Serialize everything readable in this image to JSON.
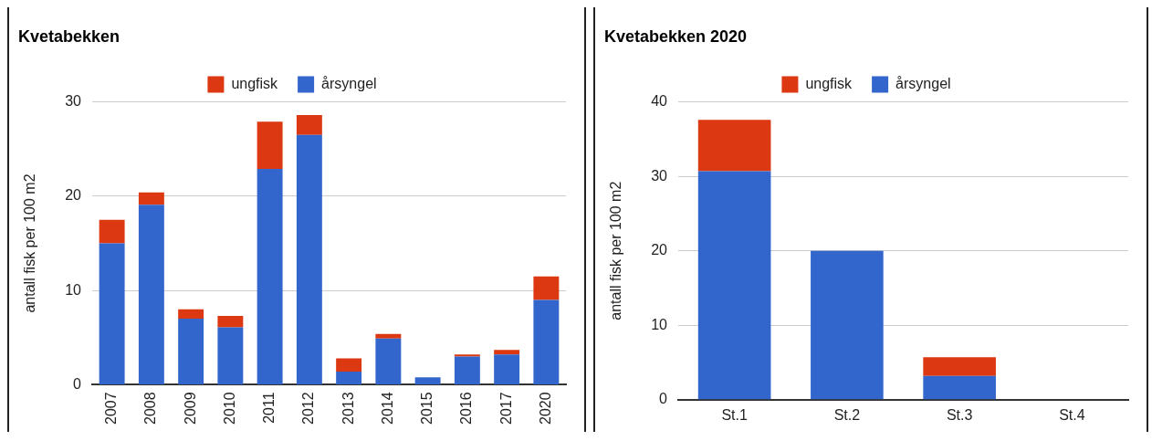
{
  "chart_data": [
    {
      "type": "bar",
      "title": "Kvetabekken",
      "ylabel": "antall fisk per 100 m2",
      "categories": [
        "2007",
        "2008",
        "2009",
        "2010",
        "2011",
        "2012",
        "2013",
        "2014",
        "2015",
        "2016",
        "2017",
        "2020"
      ],
      "stacked": true,
      "series": [
        {
          "name": "årsyngel",
          "color": "#3366cc",
          "values": [
            15,
            19.1,
            7,
            6.1,
            22.9,
            26.5,
            1.4,
            4.9,
            0.8,
            3,
            3.2,
            9
          ]
        },
        {
          "name": "ungfisk",
          "color": "#dc3912",
          "values": [
            2.5,
            1.3,
            1,
            1.2,
            5,
            2.1,
            1.4,
            0.5,
            0,
            0.2,
            0.5,
            2.5
          ]
        }
      ],
      "ylim": [
        0,
        30
      ],
      "yticks": [
        0,
        10,
        20,
        30
      ],
      "grid": "y",
      "legend": "top"
    },
    {
      "type": "bar",
      "title": "Kvetabekken 2020",
      "ylabel": "antall fisk per 100 m2",
      "categories": [
        "St.1",
        "St.2",
        "St.3",
        "St.4"
      ],
      "stacked": true,
      "series": [
        {
          "name": "årsyngel",
          "color": "#3366cc",
          "values": [
            30.7,
            20,
            3.2,
            0
          ]
        },
        {
          "name": "ungfisk",
          "color": "#dc3912",
          "values": [
            6.9,
            0,
            2.5,
            0
          ]
        }
      ],
      "ylim": [
        0,
        40
      ],
      "yticks": [
        0,
        10,
        20,
        30,
        40
      ],
      "grid": "y",
      "legend": "top"
    }
  ]
}
